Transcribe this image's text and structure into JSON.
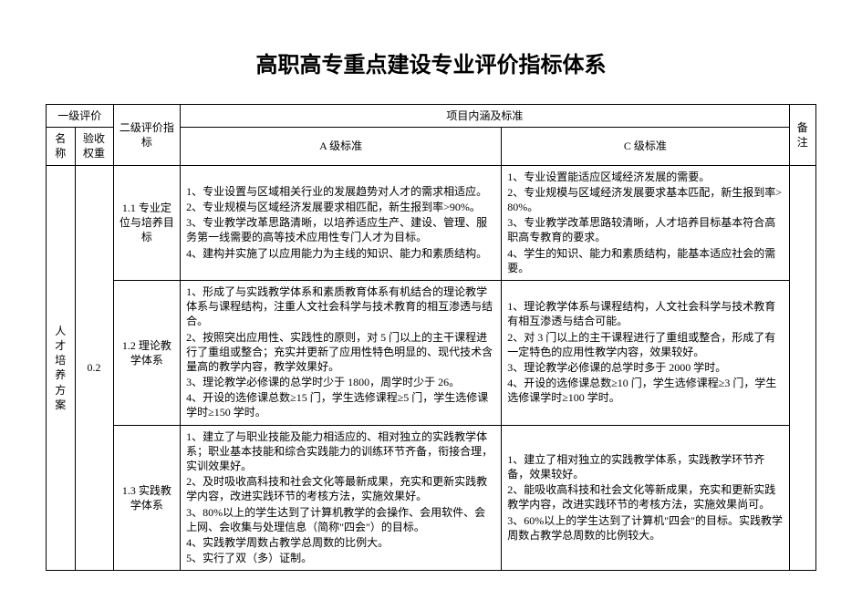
{
  "title": "高职高专重点建设专业评价指标体系",
  "title_fontsize": 24,
  "colors": {
    "text": "#000000",
    "border": "#000000",
    "background": "#ffffff"
  },
  "typography": {
    "title_font": "SimHei",
    "body_font": "SimSun",
    "body_fontsize": 12,
    "header_fontsize": 12
  },
  "columns": {
    "col_name_w": 30,
    "col_weight_w": 40,
    "col_l2_w": 70,
    "col_a_w": 335,
    "col_c_w": 300,
    "col_remark_w": 28
  },
  "headers": {
    "l1": "一级评价",
    "l2": "二级评价指标",
    "content": "项目内涵及标准",
    "remark": "备注",
    "name": "名称",
    "weight": "验收权重",
    "a": "A 级标准",
    "c": "C 级标准"
  },
  "section": {
    "name": "人才培养方案",
    "weight": "0.2"
  },
  "rows": [
    {
      "l2": "1.1  专业定位与培养目标",
      "a": [
        "1、专业设置与区域相关行业的发展趋势对人才的需求相适应。",
        "2、专业规模与区域经济发展要求相匹配，新生报到率>90%。",
        "3、专业教学改革思路清晰，以培养适应生产、建设、管理、服务第一线需要的高等技术应用性专门人才为目标。",
        "4、建构并实施了以应用能力为主线的知识、能力和素质结构。"
      ],
      "c": [
        "1、专业设置能适应区域经济发展的需要。",
        "2、专业规模与区域经济发展要求基本匹配，新生报到率>80%。",
        "3、专业教学改革思路较清晰，人才培养目标基本符合高职高专教育的要求。",
        "4、学生的知识、能力和素质结构，能基本适应社会的需要。"
      ]
    },
    {
      "l2": "1.2  理论教学体系",
      "a": [
        "1、形成了与实践教学体系和素质教育体系有机结合的理论教学体系与课程结构，注重人文社会科学与技术教育的相互渗透与结合。",
        "2、按照突出应用性、实践性的原则，对 5 门以上的主干课程进行了重组或整合；充实并更新了应用性特色明显的、现代技术含量高的教学内容，教学效果好。",
        "3、理论教学必修课的总学时少于 1800，周学时少于 26。",
        "4、开设的选修课总数≥15 门，学生选修课程≥5 门，学生选修课学时≥150 学时。"
      ],
      "c": [
        "1、理论教学体系与课程结构，人文社会科学与技术教育有相互渗透与结合可能。",
        "2、对 3 门以上的主干课程进行了重组或整合，形成了有一定特色的应用性教学内容，效果较好。",
        "3、理论教学必修课的总学时多于 2000 学时。",
        "4、开设的选修课总数≥10 门，学生选修课程≥3 门，学生选修课学时≥100 学时。"
      ]
    },
    {
      "l2": "1.3  实践教学体系",
      "a": [
        "1、建立了与职业技能及能力相适应的、相对独立的实践教学体系；职业基本技能和综合实践能力的训练环节齐备，衔接合理，实训效果好。",
        "2、及时吸收高科技和社会文化等最新成果，充实和更新实践教学内容，改进实践环节的考核方法，实施效果好。",
        "3、80%以上的学生达到了计算机教学的会操作、会用软件、会上网、会收集与处理信息（简称\"四会\"）的目标。",
        "4、实践教学周数占教学总周数的比例大。",
        "5、实行了双（多）证制。"
      ],
      "c": [
        "1、建立了相对独立的实践教学体系，实践教学环节齐备，效果较好。",
        "2、能吸收高科技和社会文化等新成果，充实和更新实践教学内容，改进实践环节的考核方法，实施效果尚可。",
        "3、60%以上的学生达到了计算机\"四会\"的目标。实践教学周数占教学总周数的比例较大。"
      ]
    }
  ]
}
